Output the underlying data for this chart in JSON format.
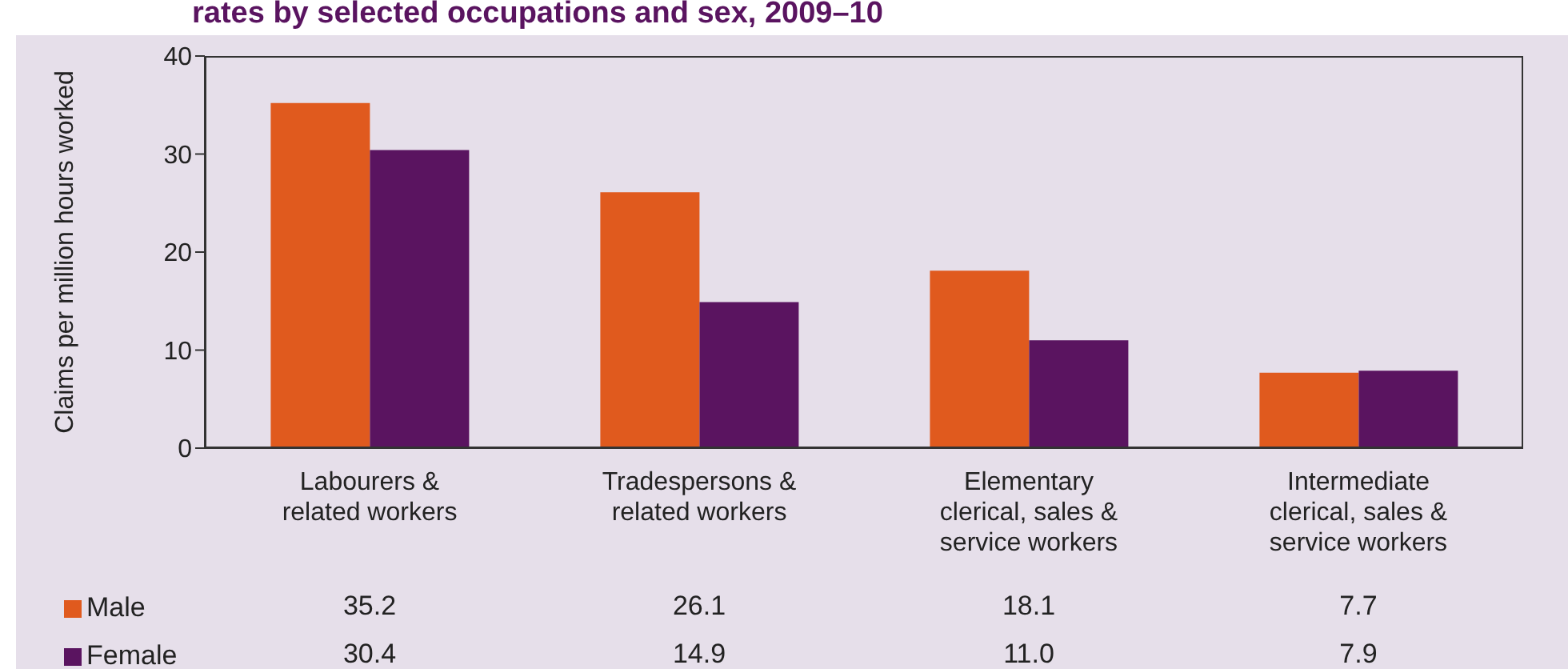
{
  "chart_data": {
    "type": "bar",
    "title": "rates by selected occupations and sex, 2009–10",
    "ylabel": "Claims per million hours worked",
    "categories": [
      "Labourers & related workers",
      "Tradespersons & related workers",
      "Elementary clerical, sales & service workers",
      "Intermediate clerical, sales & service workers"
    ],
    "series": [
      {
        "name": "Male",
        "color": "#e05a1e",
        "values": [
          35.2,
          26.1,
          18.1,
          7.7
        ],
        "value_labels": [
          "35.2",
          "26.1",
          "18.1",
          "7.7"
        ]
      },
      {
        "name": "Female",
        "color": "#5a1460",
        "values": [
          30.4,
          14.9,
          11.0,
          7.9
        ],
        "value_labels": [
          "30.4",
          "14.9",
          "11.0",
          "7.9"
        ]
      }
    ],
    "legend": "bottom left",
    "ylim": [
      0,
      40
    ],
    "yticks": [
      0,
      10,
      20,
      30,
      40
    ]
  }
}
